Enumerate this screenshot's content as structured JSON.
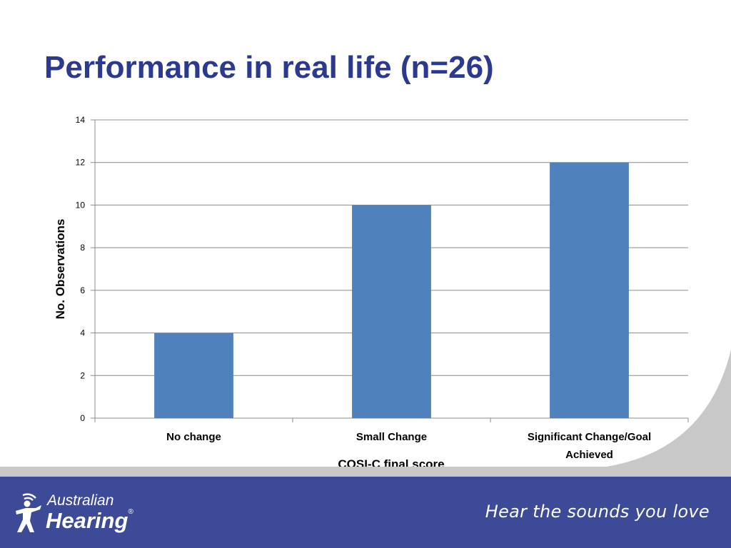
{
  "slide": {
    "title": "Performance in real life (n=26)"
  },
  "chart_data": {
    "type": "bar",
    "categories": [
      "No change",
      "Small Change",
      "Significant Change/Goal Achieved"
    ],
    "values": [
      4,
      10,
      12
    ],
    "xlabel": "COSI-C  final score",
    "ylabel": "No. Observations",
    "ylim": [
      0,
      14
    ],
    "yticks": [
      0,
      2,
      4,
      6,
      8,
      10,
      12,
      14
    ],
    "grid": true,
    "bar_color": "#4f81bd"
  },
  "footer": {
    "logo_line1": "Australian",
    "logo_line2": "Hearing",
    "tagline": "Hear the sounds you love",
    "bar_color": "#3c4a97"
  }
}
